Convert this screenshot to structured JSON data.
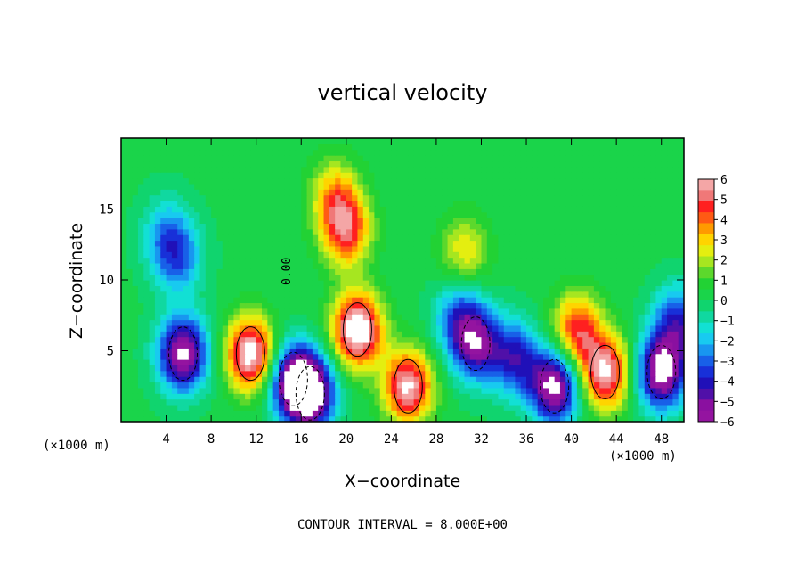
{
  "chart_data": {
    "type": "heatmap",
    "title": "vertical velocity",
    "xlabel": "X−coordinate",
    "ylabel": "Z−coordinate",
    "x_unit_left": "(×1000 m)",
    "x_unit_right": "(×1000 m)",
    "contour_note": "CONTOUR INTERVAL = 8.000E+00",
    "contour_label": "0.00",
    "xlim": [
      0,
      50
    ],
    "ylim": [
      0,
      20
    ],
    "x_ticks": [
      "4",
      "8",
      "12",
      "16",
      "20",
      "24",
      "28",
      "32",
      "36",
      "40",
      "44",
      "48"
    ],
    "y_ticks": [
      "5",
      "10",
      "15"
    ],
    "colorbar": {
      "range": [
        -6,
        6
      ],
      "tick_labels": [
        "6",
        "5",
        "4",
        "3",
        "2",
        "1",
        "0",
        "−1",
        "−2",
        "−3",
        "−4",
        "−5",
        "−6"
      ],
      "colors": [
        "#f4a6a6",
        "#f07878",
        "#ff2020",
        "#ff5a14",
        "#ff9a00",
        "#ffd400",
        "#e4ee10",
        "#a6e620",
        "#5cd82c",
        "#22d234",
        "#1ad44a",
        "#10d46e",
        "#10d8a0",
        "#12e0d4",
        "#18caf0",
        "#1896f0",
        "#1860e8",
        "#1830d8",
        "#2010b8",
        "#5010a8",
        "#8a10a0",
        "#9414a0"
      ]
    },
    "features": [
      {
        "x": 5.5,
        "z": 4.8,
        "w": -6.5
      },
      {
        "x": 11.5,
        "z": 4.8,
        "w": 6.5
      },
      {
        "x": 15.3,
        "z": 3.0,
        "w": -5.5
      },
      {
        "x": 16.8,
        "z": 2.0,
        "w": -6.5
      },
      {
        "x": 21.0,
        "z": 6.5,
        "w": 7.0
      },
      {
        "x": 20.0,
        "z": 13.5,
        "w": 4.5
      },
      {
        "x": 19.0,
        "z": 16.0,
        "w": 3.0
      },
      {
        "x": 25.5,
        "z": 2.5,
        "w": 6.0
      },
      {
        "x": 30.0,
        "z": 7.5,
        "w": -3.0
      },
      {
        "x": 31.5,
        "z": 5.5,
        "w": -5.0
      },
      {
        "x": 30.5,
        "z": 12.0,
        "w": 2.5
      },
      {
        "x": 35.0,
        "z": 4.5,
        "w": -4.0
      },
      {
        "x": 38.5,
        "z": 2.5,
        "w": -6.5
      },
      {
        "x": 40.5,
        "z": 6.5,
        "w": 4.5
      },
      {
        "x": 43.0,
        "z": 3.5,
        "w": 6.0
      },
      {
        "x": 48.0,
        "z": 3.5,
        "w": -6.5
      },
      {
        "x": 5.0,
        "z": 11.5,
        "w": -3.0
      },
      {
        "x": 4.0,
        "z": 13.5,
        "w": -2.0
      },
      {
        "x": 49.5,
        "z": 7.0,
        "w": -4.0
      }
    ]
  }
}
